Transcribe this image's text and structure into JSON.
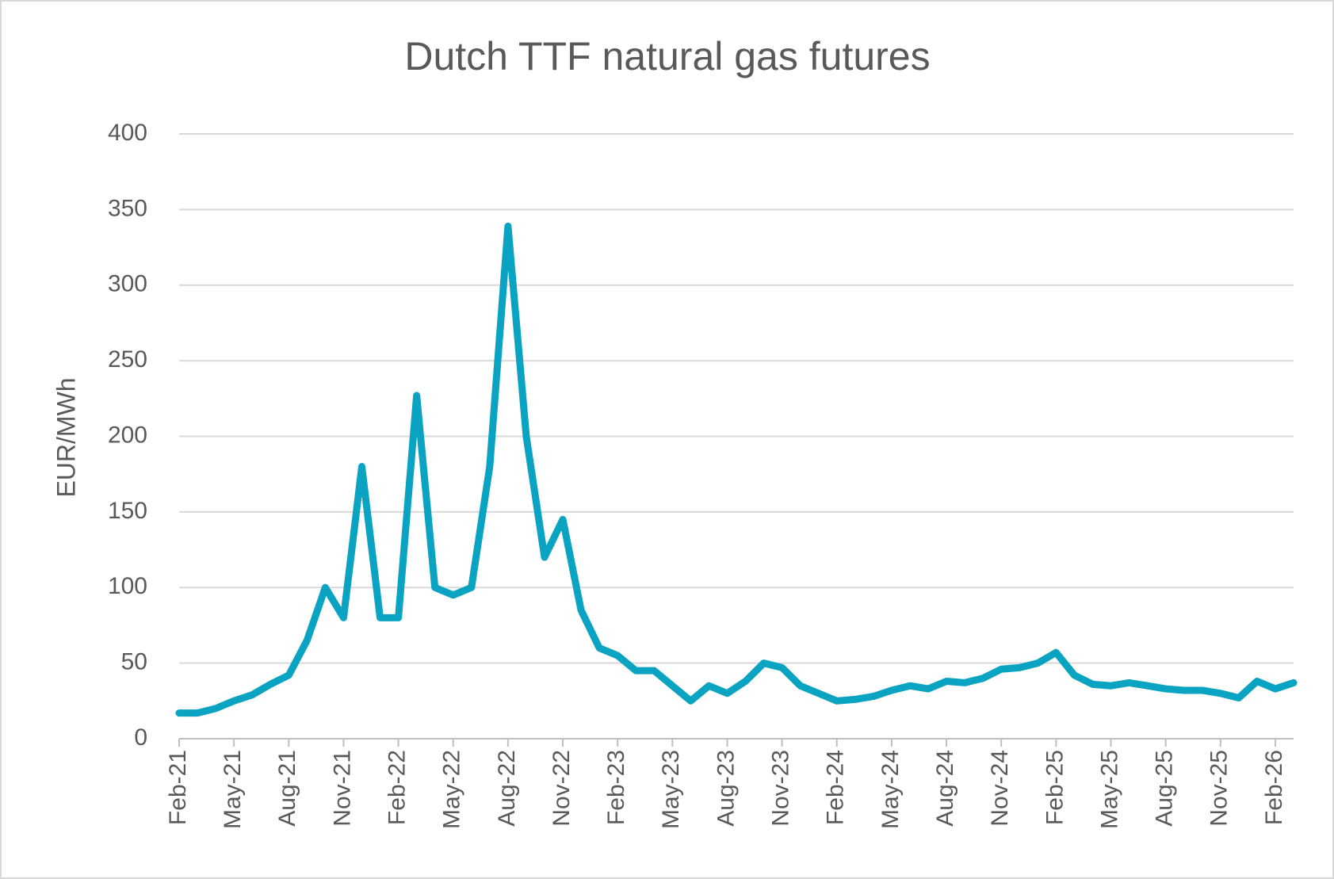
{
  "chart_data": {
    "type": "line",
    "title": "Dutch TTF natural gas futures",
    "y_label": "EUR/MWh",
    "x": [
      "2021-02",
      "2021-03",
      "2021-04",
      "2021-05",
      "2021-06",
      "2021-07",
      "2021-08",
      "2021-09",
      "2021-10",
      "2021-11",
      "2021-12",
      "2022-01",
      "2022-02",
      "2022-03",
      "2022-04",
      "2022-05",
      "2022-06",
      "2022-07",
      "2022-08",
      "2022-09",
      "2022-10",
      "2022-11",
      "2022-12",
      "2023-01",
      "2023-02",
      "2023-03",
      "2023-04",
      "2023-05",
      "2023-06",
      "2023-07",
      "2023-08",
      "2023-09",
      "2023-10",
      "2023-11",
      "2023-12",
      "2024-01",
      "2024-02",
      "2024-03",
      "2024-04",
      "2024-05",
      "2024-06",
      "2024-07",
      "2024-08",
      "2024-09",
      "2024-10",
      "2024-11",
      "2024-12",
      "2025-01",
      "2025-02",
      "2025-03",
      "2025-04",
      "2025-05",
      "2025-06",
      "2025-07",
      "2025-08",
      "2025-09",
      "2025-10",
      "2025-11",
      "2025-12",
      "2026-01",
      "2026-02",
      "2026-03"
    ],
    "series": [
      {
        "name": "TTF",
        "color": "#0aa3c2",
        "values": [
          17,
          17,
          20,
          25,
          29,
          36,
          42,
          65,
          100,
          80,
          180,
          80,
          80,
          227,
          100,
          95,
          100,
          180,
          339,
          200,
          120,
          145,
          85,
          60,
          55,
          45,
          45,
          35,
          25,
          35,
          30,
          38,
          50,
          47,
          35,
          30,
          25,
          26,
          28,
          32,
          35,
          33,
          38,
          37,
          40,
          46,
          47,
          50,
          57,
          42,
          36,
          35,
          37,
          35,
          33,
          32,
          32,
          30,
          27,
          38,
          33,
          37
        ]
      }
    ],
    "xlim": [
      "2021-02",
      "2026-03"
    ],
    "xticks": [
      {
        "value": "2021-02",
        "label": "Feb-21"
      },
      {
        "value": "2021-05",
        "label": "May-21"
      },
      {
        "value": "2021-08",
        "label": "Aug-21"
      },
      {
        "value": "2021-11",
        "label": "Nov-21"
      },
      {
        "value": "2022-02",
        "label": "Feb-22"
      },
      {
        "value": "2022-05",
        "label": "May-22"
      },
      {
        "value": "2022-08",
        "label": "Aug-22"
      },
      {
        "value": "2022-11",
        "label": "Nov-22"
      },
      {
        "value": "2023-02",
        "label": "Feb-23"
      },
      {
        "value": "2023-05",
        "label": "May-23"
      },
      {
        "value": "2023-08",
        "label": "Aug-23"
      },
      {
        "value": "2023-11",
        "label": "Nov-23"
      },
      {
        "value": "2024-02",
        "label": "Feb-24"
      },
      {
        "value": "2024-05",
        "label": "May-24"
      },
      {
        "value": "2024-08",
        "label": "Aug-24"
      },
      {
        "value": "2024-11",
        "label": "Nov-24"
      },
      {
        "value": "2025-02",
        "label": "Feb-25"
      },
      {
        "value": "2025-05",
        "label": "May-25"
      },
      {
        "value": "2025-08",
        "label": "Aug-25"
      },
      {
        "value": "2025-11",
        "label": "Nov-25"
      },
      {
        "value": "2026-02",
        "label": "Feb-26"
      }
    ],
    "ylim": [
      0,
      400
    ],
    "yticks": [
      0,
      50,
      100,
      150,
      200,
      250,
      300,
      350,
      400
    ],
    "grid": true
  }
}
